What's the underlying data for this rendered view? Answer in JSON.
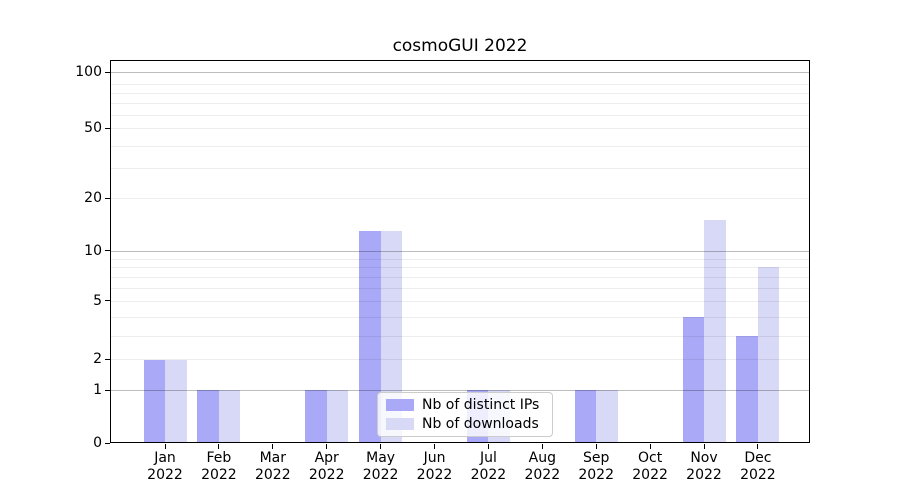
{
  "title": "cosmoGUI 2022",
  "chart_data": {
    "type": "bar",
    "title": "cosmoGUI 2022",
    "xlabel": "",
    "ylabel": "",
    "categories": [
      "Jan 2022",
      "Feb 2022",
      "Mar 2022",
      "Apr 2022",
      "May 2022",
      "Jun 2022",
      "Jul 2022",
      "Aug 2022",
      "Sep 2022",
      "Oct 2022",
      "Nov 2022",
      "Dec 2022"
    ],
    "series": [
      {
        "name": "Nb of distinct IPs",
        "color": "#a9a9f7",
        "values": [
          2,
          1,
          0,
          1,
          13,
          0,
          1,
          0,
          1,
          0,
          4,
          3
        ]
      },
      {
        "name": "Nb of downloads",
        "color": "#d8d8f7",
        "values": [
          2,
          1,
          0,
          1,
          13,
          0,
          1,
          0,
          1,
          0,
          15,
          8
        ]
      }
    ],
    "yscale": "symlog",
    "yticks": [
      0,
      1,
      2,
      5,
      10,
      20,
      50,
      100
    ],
    "ylim": [
      0,
      124
    ],
    "grid": true,
    "grid_minor_values": [
      2,
      3,
      4,
      5,
      6,
      7,
      8,
      9,
      20,
      30,
      40,
      50,
      60,
      70,
      80,
      90
    ],
    "grid_major_values": [
      1,
      10,
      100
    ],
    "legend_position": "lower center"
  },
  "colors": {
    "grid_minor": "rgba(0,0,0,0.07)",
    "grid_major": "rgba(0,0,0,0.26)",
    "axis": "#000000",
    "background": "#ffffff"
  }
}
